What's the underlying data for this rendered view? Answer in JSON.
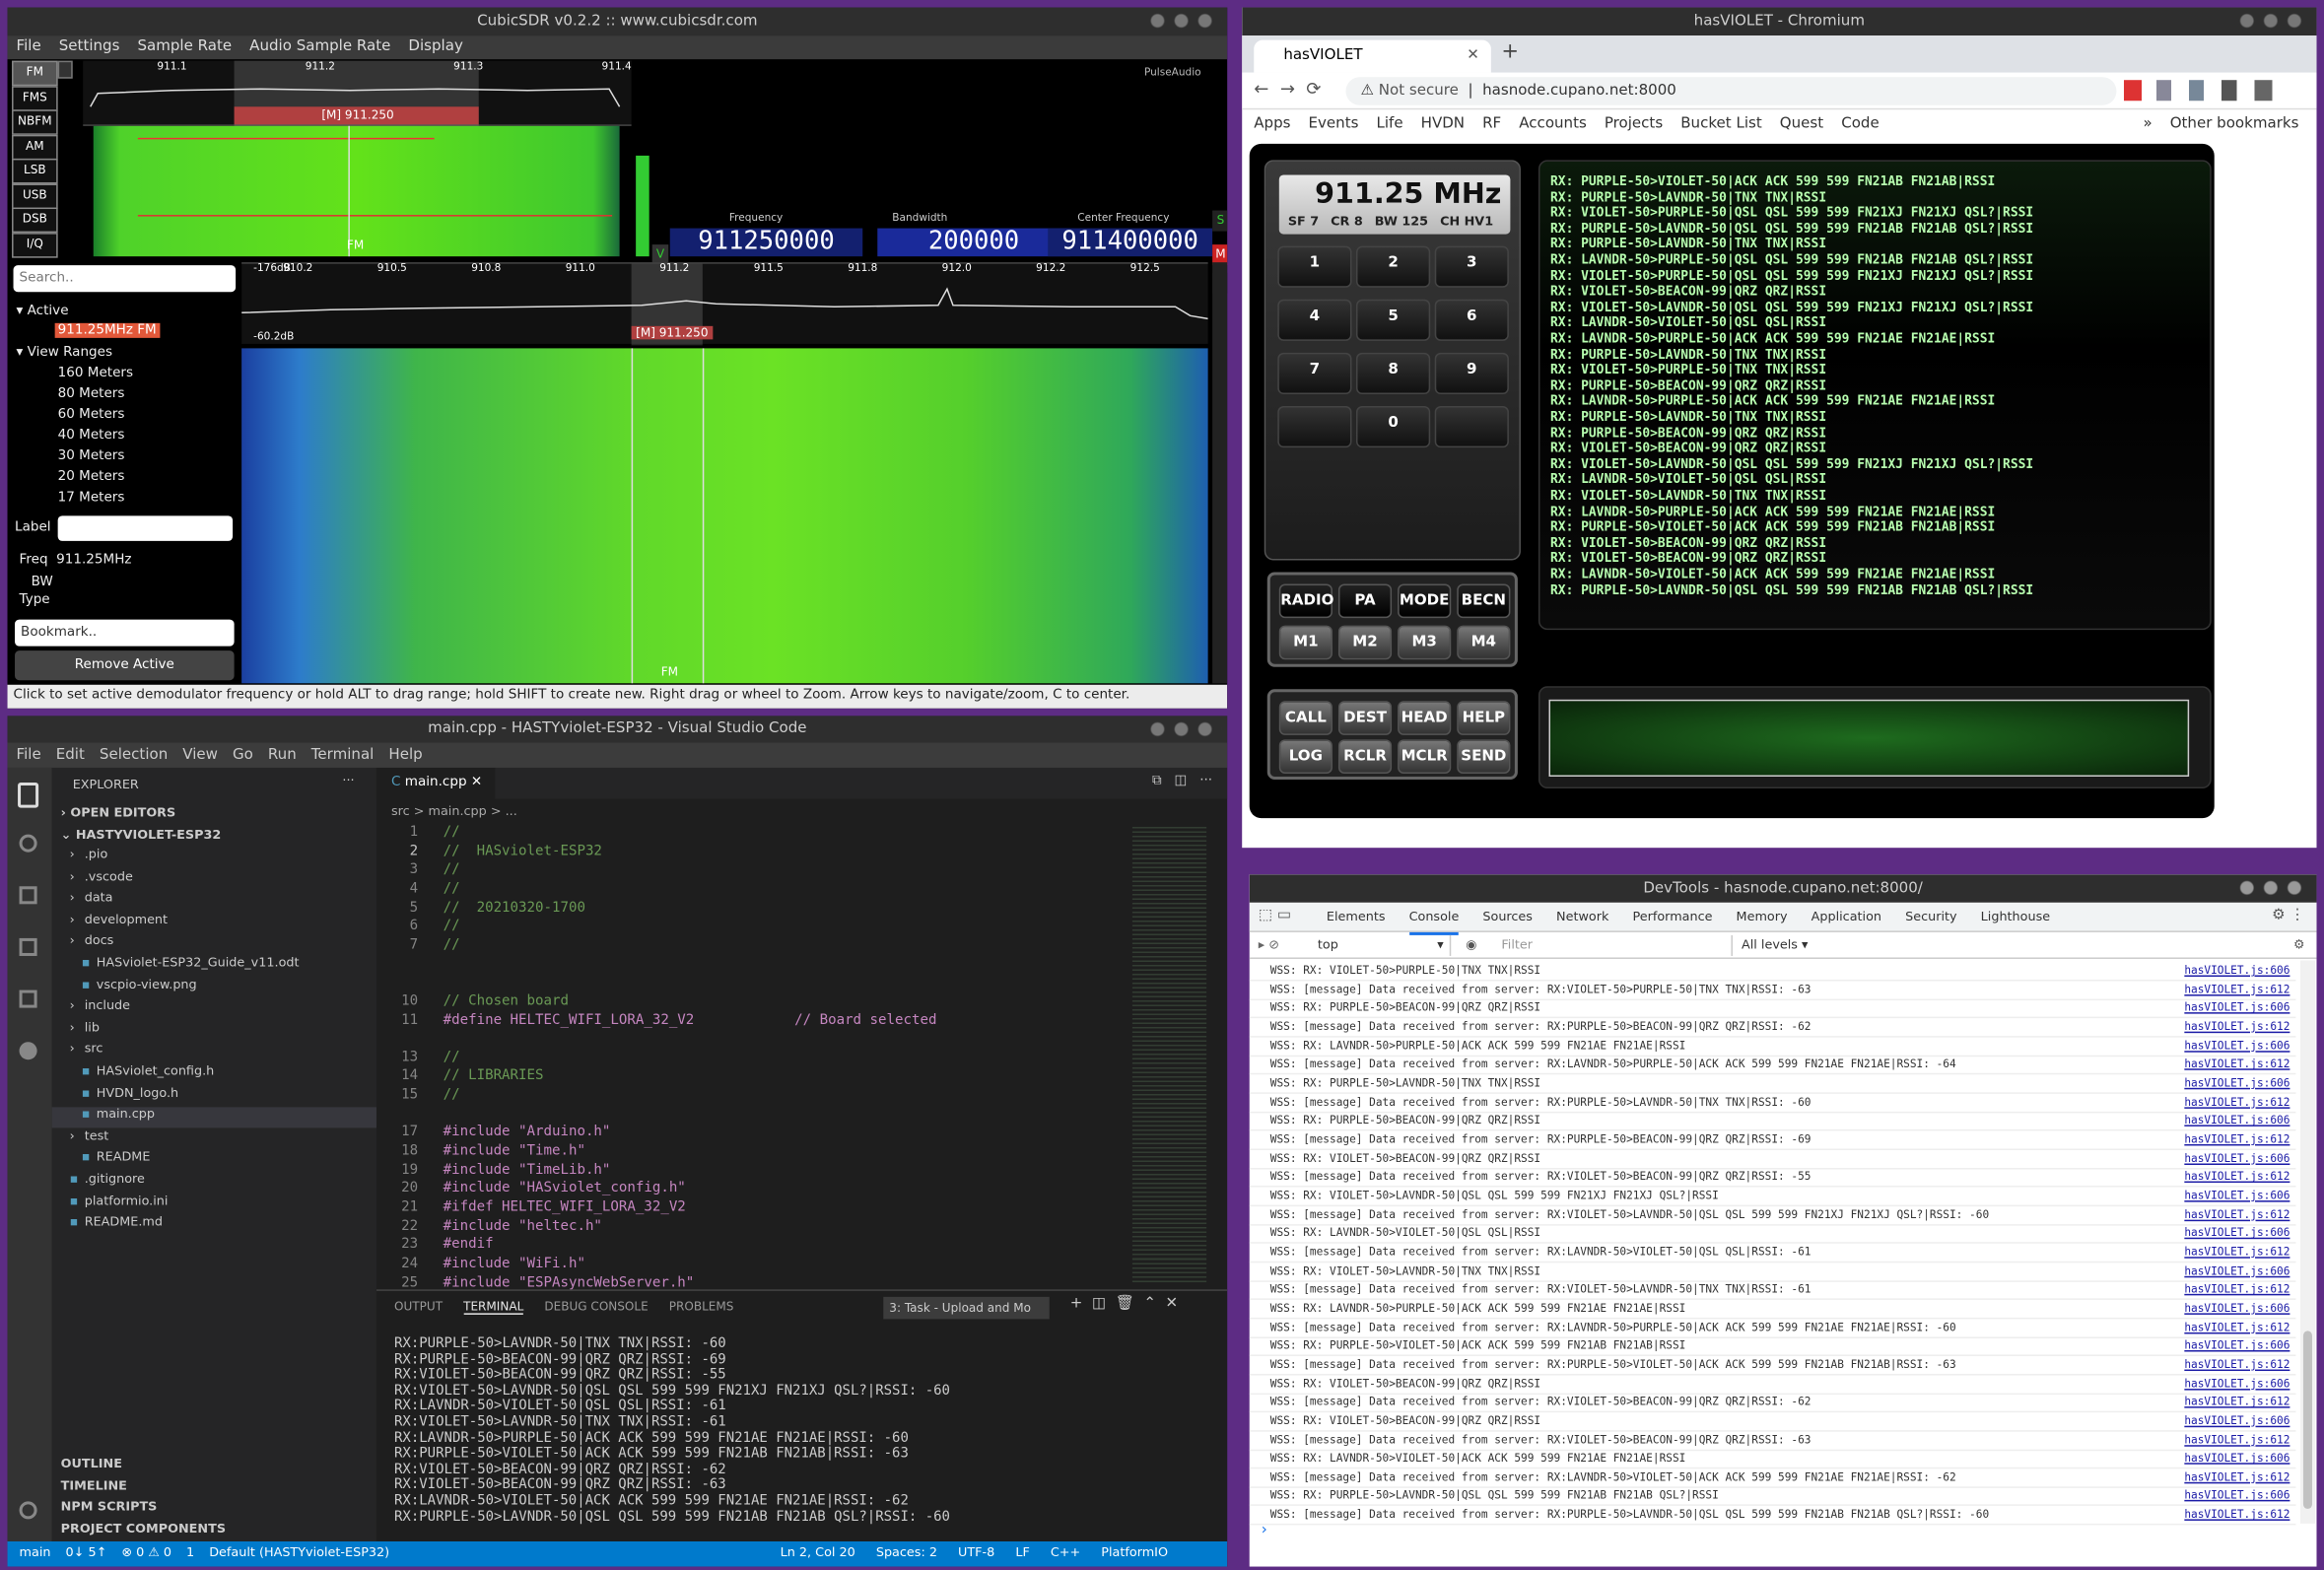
{
  "cubicsdr": {
    "title": "CubicSDR v0.2.2 :: www.cubicsdr.com",
    "menu": [
      "File",
      "Settings",
      "Sample Rate",
      "Audio Sample Rate",
      "Display"
    ],
    "modes": [
      "FM",
      "FMS",
      "NBFM",
      "AM",
      "LSB",
      "USB",
      "DSB",
      "I/Q"
    ],
    "top_scale": [
      "911.1",
      "911.2",
      "911.3",
      "911.4"
    ],
    "top_marker": "[M]  911.250",
    "audio": "PulseAudio",
    "demod_label": "FM",
    "freq_labels": [
      "Frequency",
      "Bandwidth",
      "Center Frequency"
    ],
    "freq_values": [
      "911250000",
      "200000",
      "911400000"
    ],
    "keys": [
      "V",
      "M",
      "S",
      "P"
    ],
    "search": "Search..",
    "active": "Active",
    "active_item": "911.25MHz FM",
    "ranges": "View Ranges",
    "range_items": [
      "160 Meters",
      "80 Meters",
      "60 Meters",
      "40 Meters",
      "30 Meters",
      "20 Meters",
      "17 Meters"
    ],
    "label": "Label",
    "freq_label": "Freq",
    "freq_value": "911.25MHz",
    "bw": "BW",
    "type": "Type",
    "bookmark": "Bookmark..",
    "remove": "Remove Active",
    "main_scale": [
      "910.2",
      "910.5",
      "910.8",
      "911.0",
      "911.2",
      "911.5",
      "911.8",
      "912.0",
      "912.2",
      "912.5"
    ],
    "db_top": "-176dB",
    "db_bottom": "-60.2dB",
    "main_marker": "[M]  911.250",
    "main_demod": "FM",
    "status": "Click to set active demodulator frequency or hold ALT to drag range; hold SHIFT to create new.  Right drag or wheel to Zoom.  Arrow keys to navigate/zoom, C to center."
  },
  "chromium": {
    "title": "hasVIOLET - Chromium",
    "tab": "hasVIOLET",
    "security": "Not secure",
    "url": "hasnode.cupano.net:8000",
    "bookmarks": [
      "Apps",
      "Events",
      "Life",
      "HVDN",
      "RF",
      "Accounts",
      "Projects",
      "Bucket List",
      "Quest",
      "Code"
    ],
    "more": "»",
    "other": "Other bookmarks",
    "radio": {
      "frequency": "911.25 MHz",
      "params": [
        "SF 7",
        "CR 8",
        "BW 125",
        "CH HV1"
      ],
      "keypad": [
        "1",
        "2",
        "3",
        "4",
        "5",
        "6",
        "7",
        "8",
        "9",
        "0"
      ],
      "mode_buttons": [
        "RADIO",
        "PA",
        "MODE",
        "BECN"
      ],
      "memory_buttons": [
        "M1",
        "M2",
        "M3",
        "M4"
      ],
      "call_buttons": [
        "CALL",
        "DEST",
        "HEAD",
        "HELP"
      ],
      "log_buttons": [
        "LOG",
        "RCLR",
        "MCLR",
        "SEND"
      ],
      "log": [
        "RX: PURPLE-50>VIOLET-50|ACK ACK 599 599 FN21AB FN21AB|RSSI",
        "RX: PURPLE-50>LAVNDR-50|TNX TNX|RSSI",
        "RX: VIOLET-50>PURPLE-50|QSL QSL 599 599 FN21XJ FN21XJ QSL?|RSSI",
        "RX: PURPLE-50>LAVNDR-50|QSL QSL 599 599 FN21AB FN21AB QSL?|RSSI",
        "RX: PURPLE-50>LAVNDR-50|TNX TNX|RSSI",
        "RX: LAVNDR-50>PURPLE-50|QSL QSL 599 599 FN21AB FN21AB QSL?|RSSI",
        "RX: VIOLET-50>PURPLE-50|QSL QSL 599 599 FN21XJ FN21XJ QSL?|RSSI",
        "RX: VIOLET-50>BEACON-99|QRZ QRZ|RSSI",
        "RX: VIOLET-50>LAVNDR-50|QSL QSL 599 599 FN21XJ FN21XJ QSL?|RSSI",
        "RX: LAVNDR-50>VIOLET-50|QSL QSL|RSSI",
        "RX: LAVNDR-50>PURPLE-50|ACK ACK 599 599 FN21AE FN21AE|RSSI",
        "RX: PURPLE-50>LAVNDR-50|TNX TNX|RSSI",
        "RX: VIOLET-50>PURPLE-50|TNX TNX|RSSI",
        "RX: PURPLE-50>BEACON-99|QRZ QRZ|RSSI",
        "RX: LAVNDR-50>PURPLE-50|ACK ACK 599 599 FN21AE FN21AE|RSSI",
        "RX: PURPLE-50>LAVNDR-50|TNX TNX|RSSI",
        "RX: PURPLE-50>BEACON-99|QRZ QRZ|RSSI",
        "RX: VIOLET-50>BEACON-99|QRZ QRZ|RSSI",
        "RX: VIOLET-50>LAVNDR-50|QSL QSL 599 599 FN21XJ FN21XJ QSL?|RSSI",
        "RX: LAVNDR-50>VIOLET-50|QSL QSL|RSSI",
        "RX: VIOLET-50>LAVNDR-50|TNX TNX|RSSI",
        "RX: LAVNDR-50>PURPLE-50|ACK ACK 599 599 FN21AE FN21AE|RSSI",
        "RX: PURPLE-50>VIOLET-50|ACK ACK 599 599 FN21AB FN21AB|RSSI",
        "RX: VIOLET-50>BEACON-99|QRZ QRZ|RSSI",
        "RX: VIOLET-50>BEACON-99|QRZ QRZ|RSSI",
        "RX: LAVNDR-50>VIOLET-50|ACK ACK 599 599 FN21AE FN21AE|RSSI",
        "RX: PURPLE-50>LAVNDR-50|QSL QSL 599 599 FN21AB FN21AB QSL?|RSSI"
      ]
    }
  },
  "vscode": {
    "title": "main.cpp - HASTYviolet-ESP32 - Visual Studio Code",
    "menu": [
      "File",
      "Edit",
      "Selection",
      "View",
      "Go",
      "Run",
      "Terminal",
      "Help"
    ],
    "explorer": "EXPLORER",
    "open_editors": "OPEN EDITORS",
    "project": "HASTYVIOLET-ESP32",
    "tree": [
      ".pio",
      ".vscode",
      "data",
      "development",
      "docs",
      "HASviolet-ESP32_Guide_v11.odt",
      "vscpio-view.png",
      "include",
      "lib",
      "src",
      "HASviolet_config.h",
      "HVDN_logo.h",
      "main.cpp",
      "test",
      "README",
      ".gitignore",
      "platformio.ini",
      "README.md"
    ],
    "sections": [
      "OUTLINE",
      "TIMELINE",
      "NPM SCRIPTS",
      "PROJECT COMPONENTS"
    ],
    "tab": "main.cpp",
    "breadcrumb": "src > main.cpp > ...",
    "code": [
      {
        "line": 1,
        "text": "//"
      },
      {
        "line": 2,
        "text": "//  HASviolet-ESP32"
      },
      {
        "line": 3,
        "text": "//"
      },
      {
        "line": 4,
        "text": "//"
      },
      {
        "line": 5,
        "text": "//  20210320-1700"
      },
      {
        "line": 6,
        "text": "//"
      },
      {
        "line": 7,
        "text": "//"
      },
      {
        "line": 10,
        "text": "// Chosen board"
      },
      {
        "line": 11,
        "text": "#define HELTEC_WIFI_LORA_32_V2            // Board selected"
      },
      {
        "line": 13,
        "text": "//"
      },
      {
        "line": 14,
        "text": "// LIBRARIES"
      },
      {
        "line": 15,
        "text": "//"
      },
      {
        "line": 17,
        "text": "#include \"Arduino.h\""
      },
      {
        "line": 18,
        "text": "#include \"Time.h\""
      },
      {
        "line": 19,
        "text": "#include \"TimeLib.h\""
      },
      {
        "line": 20,
        "text": "#include \"HASviolet_config.h\""
      },
      {
        "line": 21,
        "text": "#ifdef HELTEC_WIFI_LORA_32_V2"
      },
      {
        "line": 22,
        "text": "#include \"heltec.h\""
      },
      {
        "line": 23,
        "text": "#endif"
      },
      {
        "line": 24,
        "text": "#include \"WiFi.h\""
      },
      {
        "line": 25,
        "text": "#include \"ESPAsyncWebServer.h\""
      }
    ],
    "panel_tabs": [
      "OUTPUT",
      "TERMINAL",
      "DEBUG CONSOLE",
      "PROBLEMS"
    ],
    "task": "3: Task - Upload and Mo",
    "terminal": [
      "RX:PURPLE-50>LAVNDR-50|TNX TNX|RSSI: -60",
      "RX:PURPLE-50>BEACON-99|QRZ QRZ|RSSI: -69",
      "RX:VIOLET-50>BEACON-99|QRZ QRZ|RSSI: -55",
      "RX:VIOLET-50>LAVNDR-50|QSL QSL 599 599 FN21XJ FN21XJ QSL?|RSSI: -60",
      "RX:LAVNDR-50>VIOLET-50|QSL QSL|RSSI: -61",
      "RX:VIOLET-50>LAVNDR-50|TNX TNX|RSSI: -61",
      "RX:LAVNDR-50>PURPLE-50|ACK ACK 599 599 FN21AE FN21AE|RSSI: -60",
      "RX:PURPLE-50>VIOLET-50|ACK ACK 599 599 FN21AB FN21AB|RSSI: -63",
      "RX:VIOLET-50>BEACON-99|QRZ QRZ|RSSI: -62",
      "RX:VIOLET-50>BEACON-99|QRZ QRZ|RSSI: -63",
      "RX:LAVNDR-50>VIOLET-50|ACK ACK 599 599 FN21AE FN21AE|RSSI: -62",
      "RX:PURPLE-50>LAVNDR-50|QSL QSL 599 599 FN21AB FN21AB QSL?|RSSI: -60"
    ],
    "status_left": [
      "main",
      "0↓ 5↑",
      "⊗ 0 ⚠ 0",
      "1",
      "Default (HASTYviolet-ESP32)"
    ],
    "status_right": [
      "Ln 2, Col 20",
      "Spaces: 2",
      "UTF-8",
      "LF",
      "C++",
      "PlatformIO"
    ]
  },
  "devtools": {
    "title": "DevTools - hasnode.cupano.net:8000/",
    "tabs": [
      "Elements",
      "Console",
      "Sources",
      "Network",
      "Performance",
      "Memory",
      "Application",
      "Security",
      "Lighthouse"
    ],
    "context": "top",
    "filter": "Filter",
    "levels": "All levels",
    "prompt": "›",
    "console": [
      {
        "text": "WSS: RX: VIOLET-50>PURPLE-50|TNX TNX|RSSI",
        "source": "hasVIOLET.js:606"
      },
      {
        "text": "WSS: [message] Data received from server: RX:VIOLET-50>PURPLE-50|TNX TNX|RSSI: -63",
        "source": "hasVIOLET.js:612"
      },
      {
        "text": "WSS: RX: PURPLE-50>BEACON-99|QRZ QRZ|RSSI",
        "source": "hasVIOLET.js:606"
      },
      {
        "text": "WSS: [message] Data received from server: RX:PURPLE-50>BEACON-99|QRZ QRZ|RSSI: -62",
        "source": "hasVIOLET.js:612"
      },
      {
        "text": "WSS: RX: LAVNDR-50>PURPLE-50|ACK ACK 599 599 FN21AE FN21AE|RSSI",
        "source": "hasVIOLET.js:606"
      },
      {
        "text": "WSS: [message] Data received from server: RX:LAVNDR-50>PURPLE-50|ACK ACK 599 599 FN21AE FN21AE|RSSI: -64",
        "source": "hasVIOLET.js:612"
      },
      {
        "text": "WSS: RX: PURPLE-50>LAVNDR-50|TNX TNX|RSSI",
        "source": "hasVIOLET.js:606"
      },
      {
        "text": "WSS: [message] Data received from server: RX:PURPLE-50>LAVNDR-50|TNX TNX|RSSI: -60",
        "source": "hasVIOLET.js:612"
      },
      {
        "text": "WSS: RX: PURPLE-50>BEACON-99|QRZ QRZ|RSSI",
        "source": "hasVIOLET.js:606"
      },
      {
        "text": "WSS: [message] Data received from server: RX:PURPLE-50>BEACON-99|QRZ QRZ|RSSI: -69",
        "source": "hasVIOLET.js:612"
      },
      {
        "text": "WSS: RX: VIOLET-50>BEACON-99|QRZ QRZ|RSSI",
        "source": "hasVIOLET.js:606"
      },
      {
        "text": "WSS: [message] Data received from server: RX:VIOLET-50>BEACON-99|QRZ QRZ|RSSI: -55",
        "source": "hasVIOLET.js:612"
      },
      {
        "text": "WSS: RX: VIOLET-50>LAVNDR-50|QSL QSL 599 599 FN21XJ FN21XJ QSL?|RSSI",
        "source": "hasVIOLET.js:606"
      },
      {
        "text": "WSS: [message] Data received from server: RX:VIOLET-50>LAVNDR-50|QSL QSL 599 599 FN21XJ FN21XJ QSL?|RSSI: -60",
        "source": "hasVIOLET.js:612"
      },
      {
        "text": "WSS: RX: LAVNDR-50>VIOLET-50|QSL QSL|RSSI",
        "source": "hasVIOLET.js:606"
      },
      {
        "text": "WSS: [message] Data received from server: RX:LAVNDR-50>VIOLET-50|QSL QSL|RSSI: -61",
        "source": "hasVIOLET.js:612"
      },
      {
        "text": "WSS: RX: VIOLET-50>LAVNDR-50|TNX TNX|RSSI",
        "source": "hasVIOLET.js:606"
      },
      {
        "text": "WSS: [message] Data received from server: RX:VIOLET-50>LAVNDR-50|TNX TNX|RSSI: -61",
        "source": "hasVIOLET.js:612"
      },
      {
        "text": "WSS: RX: LAVNDR-50>PURPLE-50|ACK ACK 599 599 FN21AE FN21AE|RSSI",
        "source": "hasVIOLET.js:606"
      },
      {
        "text": "WSS: [message] Data received from server: RX:LAVNDR-50>PURPLE-50|ACK ACK 599 599 FN21AE FN21AE|RSSI: -60",
        "source": "hasVIOLET.js:612"
      },
      {
        "text": "WSS: RX: PURPLE-50>VIOLET-50|ACK ACK 599 599 FN21AB FN21AB|RSSI",
        "source": "hasVIOLET.js:606"
      },
      {
        "text": "WSS: [message] Data received from server: RX:PURPLE-50>VIOLET-50|ACK ACK 599 599 FN21AB FN21AB|RSSI: -63",
        "source": "hasVIOLET.js:612"
      },
      {
        "text": "WSS: RX: VIOLET-50>BEACON-99|QRZ QRZ|RSSI",
        "source": "hasVIOLET.js:606"
      },
      {
        "text": "WSS: [message] Data received from server: RX:VIOLET-50>BEACON-99|QRZ QRZ|RSSI: -62",
        "source": "hasVIOLET.js:612"
      },
      {
        "text": "WSS: RX: VIOLET-50>BEACON-99|QRZ QRZ|RSSI",
        "source": "hasVIOLET.js:606"
      },
      {
        "text": "WSS: [message] Data received from server: RX:VIOLET-50>BEACON-99|QRZ QRZ|RSSI: -63",
        "source": "hasVIOLET.js:612"
      },
      {
        "text": "WSS: RX: LAVNDR-50>VIOLET-50|ACK ACK 599 599 FN21AE FN21AE|RSSI",
        "source": "hasVIOLET.js:606"
      },
      {
        "text": "WSS: [message] Data received from server: RX:LAVNDR-50>VIOLET-50|ACK ACK 599 599 FN21AE FN21AE|RSSI: -62",
        "source": "hasVIOLET.js:612"
      },
      {
        "text": "WSS: RX: PURPLE-50>LAVNDR-50|QSL QSL 599 599 FN21AB FN21AB QSL?|RSSI",
        "source": "hasVIOLET.js:606"
      },
      {
        "text": "WSS: [message] Data received from server: RX:PURPLE-50>LAVNDR-50|QSL QSL 599 599 FN21AB FN21AB QSL?|RSSI: -60",
        "source": "hasVIOLET.js:612"
      }
    ]
  }
}
